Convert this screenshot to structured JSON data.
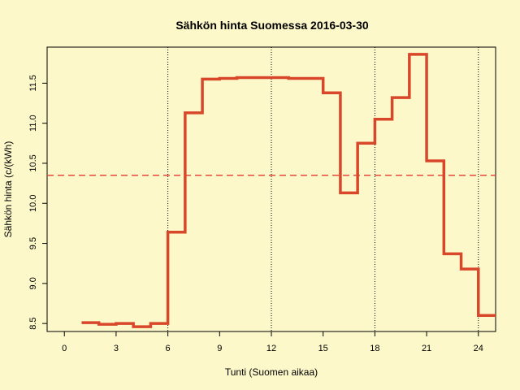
{
  "chart_data": {
    "type": "line",
    "step": true,
    "title": "Sähkön hinta Suomessa 2016-03-30",
    "xlabel": "Tunti (Suomen aikaa)",
    "ylabel": "Sähkön hinta (c/(kWh)",
    "xlim": [
      -1,
      25
    ],
    "ylim": [
      8.4,
      11.95
    ],
    "x_ticks": [
      0,
      3,
      6,
      9,
      12,
      15,
      18,
      21,
      24
    ],
    "x_tick_labels": [
      "0",
      "3",
      "6",
      "9",
      "12",
      "15",
      "18",
      "21",
      "24"
    ],
    "y_ticks": [
      8.5,
      9.0,
      9.5,
      10.0,
      10.5,
      11.0,
      11.5
    ],
    "y_tick_labels": [
      "8.5",
      "9.0",
      "9.5",
      "10.0",
      "10.5",
      "11.0",
      "11.5"
    ],
    "vertical_reference_lines": [
      6,
      12,
      18,
      24
    ],
    "average_line": 10.35,
    "colors": {
      "series": "#d9472b",
      "average": "#e8483a",
      "background": "#fdf8c9"
    },
    "series": [
      {
        "x": [
          1,
          2,
          3,
          4,
          5,
          6,
          7,
          8,
          9,
          10,
          11,
          12,
          13,
          14,
          15,
          16,
          17,
          18,
          19,
          20,
          21,
          22,
          23,
          24
        ],
        "values": [
          8.51,
          8.49,
          8.5,
          8.46,
          8.5,
          9.64,
          11.13,
          11.55,
          11.56,
          11.57,
          11.57,
          11.57,
          11.56,
          11.56,
          11.38,
          10.13,
          10.75,
          11.05,
          11.32,
          11.86,
          10.53,
          9.37,
          9.18,
          8.6
        ]
      }
    ]
  }
}
